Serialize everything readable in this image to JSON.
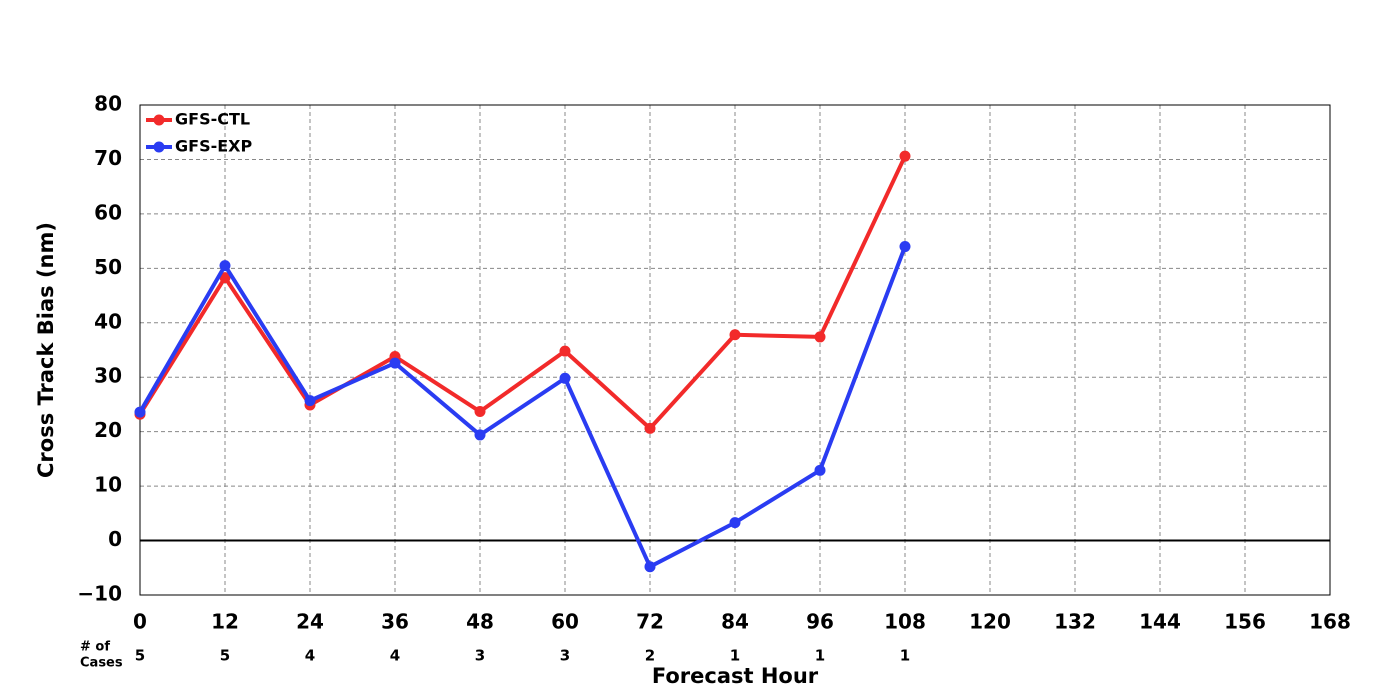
{
  "chart_data": {
    "type": "line",
    "x": [
      0,
      12,
      24,
      36,
      48,
      60,
      72,
      84,
      96,
      108
    ],
    "series": [
      {
        "name": "GFS-CTL",
        "color": "#f22a2a",
        "values": [
          23.2,
          48.3,
          24.9,
          33.8,
          23.7,
          34.8,
          20.6,
          37.8,
          37.4,
          70.6
        ]
      },
      {
        "name": "GFS-EXP",
        "color": "#2a3cf2",
        "values": [
          23.6,
          50.5,
          25.7,
          32.6,
          19.4,
          29.8,
          -4.8,
          3.3,
          12.9,
          54.0
        ]
      }
    ],
    "xlim": [
      0,
      168
    ],
    "xticks": [
      0,
      12,
      24,
      36,
      48,
      60,
      72,
      84,
      96,
      108,
      120,
      132,
      144,
      156,
      168
    ],
    "ylim": [
      -10,
      80
    ],
    "yticks": [
      {
        "value": -10,
        "label": "−10"
      },
      0,
      10,
      20,
      30,
      40,
      50,
      60,
      70,
      80
    ],
    "xlabel": "Forecast Hour",
    "ylabel": "Cross Track Bias (nm)",
    "cases_label": [
      "# of",
      "Cases"
    ],
    "cases": [
      5,
      5,
      4,
      4,
      3,
      3,
      2,
      1,
      1,
      1
    ],
    "grid": true,
    "legend": "upper-left"
  }
}
